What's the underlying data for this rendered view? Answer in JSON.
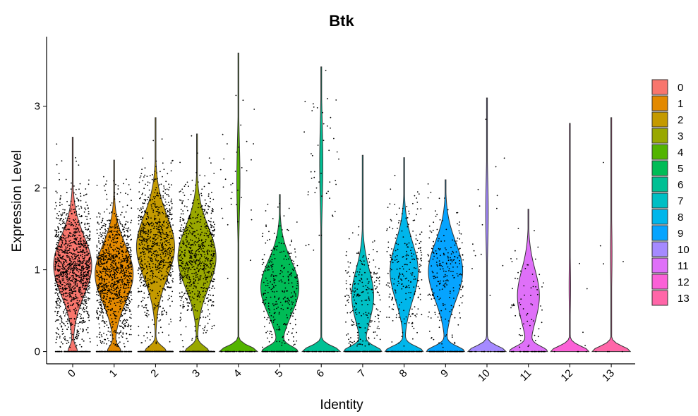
{
  "chart_data": {
    "type": "violin",
    "title": "Btk",
    "xlabel": "Identity",
    "ylabel": "Expression Level",
    "ylim": [
      -0.15,
      3.85
    ],
    "yticks": [
      0,
      1,
      2,
      3
    ],
    "categories": [
      "0",
      "1",
      "2",
      "3",
      "4",
      "5",
      "6",
      "7",
      "8",
      "9",
      "10",
      "11",
      "12",
      "13"
    ],
    "colors": [
      "#F8766D",
      "#E38900",
      "#C49A00",
      "#99A800",
      "#53B400",
      "#00BC56",
      "#00C094",
      "#00BFC4",
      "#00B6EB",
      "#06A4FF",
      "#A58AFF",
      "#DF70F8",
      "#FB61D7",
      "#FF66A8"
    ],
    "max_values": [
      2.62,
      2.34,
      2.86,
      2.66,
      3.65,
      1.92,
      3.48,
      2.4,
      2.37,
      2.1,
      3.1,
      1.74,
      2.79,
      2.86
    ],
    "median_nonzero": [
      1.05,
      0.95,
      1.28,
      1.15,
      2.1,
      0.78,
      2.3,
      0.68,
      0.98,
      0.98,
      1.7,
      0.68,
      0.8,
      1.2
    ],
    "zero_fraction": [
      0.15,
      0.2,
      0.3,
      0.32,
      0.9,
      0.4,
      0.9,
      0.55,
      0.5,
      0.45,
      0.92,
      0.55,
      0.95,
      0.95
    ],
    "legend_position": "right",
    "grid": false
  }
}
